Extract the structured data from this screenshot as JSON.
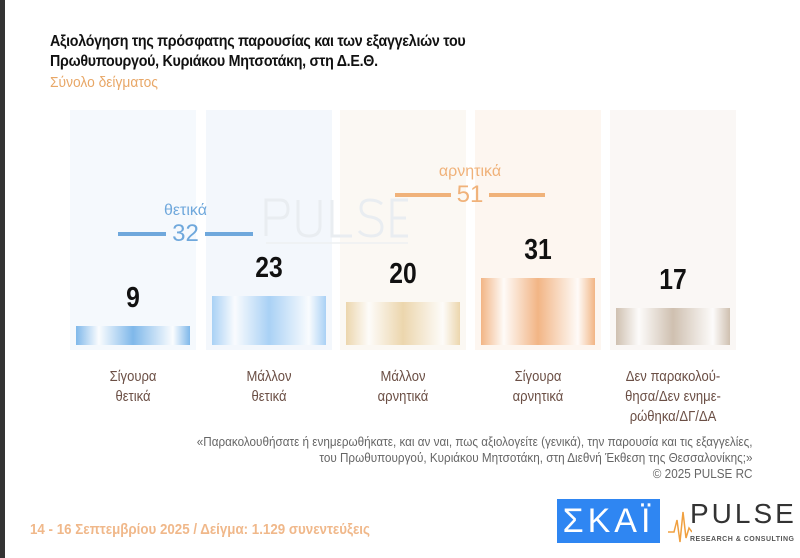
{
  "chart_data": {
    "type": "bar",
    "title": "Αξιολόγηση της πρόσφατης παρουσίας και των εξαγγελιών του Πρωθυπουργού, Κυριάκου Μητσοτάκη, στη Δ.Ε.Θ.",
    "subtitle": "Σύνολο δείγματος",
    "categories": [
      [
        "Σίγουρα",
        "θετικά"
      ],
      [
        "Μάλλον",
        "θετικά"
      ],
      [
        "Μάλλον",
        "αρνητικά"
      ],
      [
        "Σίγουρα",
        "αρνητικά"
      ],
      [
        "Δεν παρακολού-",
        "θησα/Δεν ενημε-",
        "ρώθηκα/ΔΓ/ΔΑ"
      ]
    ],
    "values": [
      9,
      23,
      20,
      31,
      17
    ],
    "colors": [
      "#7fb8ea",
      "#a9d1f5",
      "#ecd6ad",
      "#f2b585",
      "#cfc0b0"
    ],
    "groups": [
      {
        "label": "θετικά",
        "value": "32",
        "color": "#6fa8dc"
      },
      {
        "label": "αρνητικά",
        "value": "51",
        "color": "#f0b27a"
      }
    ],
    "ylim": [
      0,
      40
    ],
    "grid": false
  },
  "question": [
    "«Παρακολουθήσατε ή ενημερωθήκατε, και αν ναι, πως αξιολογείτε (γενικά), την παρουσία και τις εξαγγελίες,",
    "του Πρωθυπουργού, Κυριάκου Μητσοτάκη, στη Διεθνή Έκθεση της Θεσσαλονίκης;»",
    "©  2025  PULSE RC"
  ],
  "footer": "14 - 16 Σεπτεμβρίου 2025  /  Δείγμα:  1.129 συνεντεύξεις",
  "logos": {
    "skai": "ΣΚΑΪ",
    "pulse": "PULSE",
    "pulse_sub": "RESEARCH & CONSULTING",
    "watermark": "PULSE",
    "watermark_sub": "RESEARCH & CONSULTING"
  }
}
